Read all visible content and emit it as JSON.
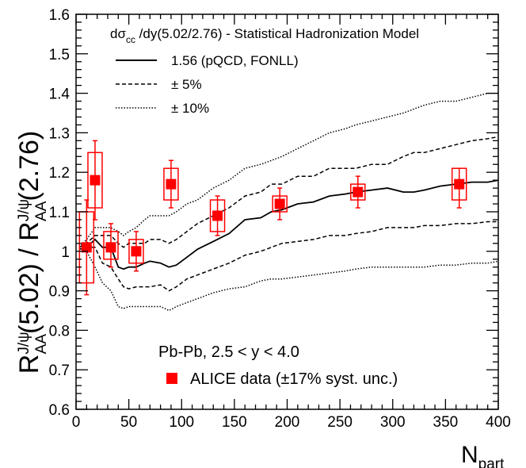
{
  "chart_data": {
    "type": "scatter",
    "xlabel": "N",
    "xlabel_sub": "part",
    "ylabel": {
      "r1": "R",
      "r1_sup": "J/ψ",
      "r1_sub": "AA",
      "mid": "(5.02) / R",
      "r2_sup": "J/ψ",
      "r2_sub": "AA",
      "tail": "(2.76)"
    },
    "xlim": [
      0,
      400
    ],
    "ylim": [
      0.6,
      1.6
    ],
    "x_ticks": [
      "0",
      "50",
      "100",
      "150",
      "200",
      "250",
      "300",
      "350",
      "400"
    ],
    "y_ticks": [
      "0.6",
      "0.7",
      "0.8",
      "0.9",
      "1",
      "1.1",
      "1.2",
      "1.3",
      "1.4",
      "1.5",
      "1.6"
    ],
    "legend_title": {
      "pre": "dσ",
      "sub": "cc",
      "post": " /dy(5.02/2.76) - Statistical Hadronization Model"
    },
    "legend": [
      {
        "style": "solid",
        "label": "1.56 (pQCD, FONLL)"
      },
      {
        "style": "dashed",
        "label": "± 5%"
      },
      {
        "style": "dotted",
        "label": "± 10%"
      }
    ],
    "annotation": "Pb-Pb, 2.5 < y < 4.0",
    "data_legend": "ALICE data (±17% syst. unc.)",
    "marker_color": "#ff0000",
    "series": [
      {
        "name": "ALICE data",
        "points": [
          {
            "x": 10,
            "y": 1.01,
            "stat": [
              0.89,
              1.13
            ],
            "syst": [
              0.92,
              1.1
            ]
          },
          {
            "x": 18,
            "y": 1.18,
            "stat": [
              1.08,
              1.28
            ],
            "syst": [
              1.11,
              1.25
            ]
          },
          {
            "x": 33,
            "y": 1.01,
            "stat": [
              0.96,
              1.07
            ],
            "syst": [
              0.98,
              1.05
            ]
          },
          {
            "x": 57,
            "y": 1.0,
            "stat": [
              0.95,
              1.05
            ],
            "syst": [
              0.97,
              1.03
            ]
          },
          {
            "x": 90,
            "y": 1.17,
            "stat": [
              1.11,
              1.23
            ],
            "syst": [
              1.13,
              1.21
            ]
          },
          {
            "x": 134,
            "y": 1.09,
            "stat": [
              1.04,
              1.14
            ],
            "syst": [
              1.05,
              1.13
            ]
          },
          {
            "x": 193,
            "y": 1.12,
            "stat": [
              1.08,
              1.16
            ],
            "syst": [
              1.1,
              1.14
            ]
          },
          {
            "x": 267,
            "y": 1.15,
            "stat": [
              1.11,
              1.19
            ],
            "syst": [
              1.13,
              1.17
            ]
          },
          {
            "x": 363,
            "y": 1.17,
            "stat": [
              1.11,
              1.21
            ],
            "syst": [
              1.13,
              1.21
            ]
          }
        ]
      },
      {
        "name": "1.56 (pQCD, FONLL)",
        "line": "solid",
        "x": [
          3,
          10,
          18,
          25,
          33,
          40,
          45,
          50,
          57,
          65,
          70,
          80,
          88,
          95,
          105,
          115,
          130,
          145,
          160,
          175,
          185,
          195,
          210,
          225,
          240,
          255,
          265,
          280,
          295,
          310,
          320,
          330,
          345,
          360,
          375,
          390,
          400
        ],
        "y": [
          1.005,
          1.01,
          1.03,
          1.01,
          1.01,
          0.96,
          0.955,
          0.96,
          0.96,
          0.97,
          0.975,
          0.97,
          0.96,
          0.965,
          0.985,
          1.005,
          1.025,
          1.045,
          1.08,
          1.085,
          1.1,
          1.105,
          1.12,
          1.125,
          1.14,
          1.145,
          1.15,
          1.155,
          1.16,
          1.15,
          1.15,
          1.155,
          1.165,
          1.17,
          1.175,
          1.175,
          1.18
        ]
      },
      {
        "name": "± 5% upper",
        "line": "dashed",
        "x": [
          3,
          10,
          18,
          25,
          33,
          40,
          45,
          50,
          57,
          65,
          70,
          80,
          88,
          95,
          105,
          115,
          130,
          145,
          160,
          175,
          185,
          195,
          210,
          225,
          240,
          255,
          265,
          280,
          295,
          310,
          320,
          330,
          345,
          360,
          375,
          390,
          400
        ],
        "y": [
          1.01,
          1.02,
          1.04,
          1.04,
          1.04,
          1.02,
          1.01,
          1.02,
          1.02,
          1.02,
          1.03,
          1.03,
          1.02,
          1.03,
          1.05,
          1.07,
          1.09,
          1.11,
          1.14,
          1.15,
          1.17,
          1.17,
          1.19,
          1.19,
          1.21,
          1.21,
          1.21,
          1.22,
          1.22,
          1.24,
          1.25,
          1.25,
          1.26,
          1.27,
          1.28,
          1.285,
          1.29
        ]
      },
      {
        "name": "± 5% lower",
        "line": "dashed",
        "x": [
          3,
          10,
          18,
          25,
          33,
          40,
          45,
          50,
          57,
          65,
          70,
          80,
          88,
          95,
          105,
          115,
          130,
          145,
          160,
          175,
          185,
          195,
          210,
          225,
          240,
          255,
          265,
          280,
          295,
          310,
          320,
          330,
          345,
          360,
          375,
          390,
          400
        ],
        "y": [
          1.005,
          1.01,
          1.01,
          0.97,
          0.96,
          0.93,
          0.91,
          0.905,
          0.91,
          0.91,
          0.91,
          0.915,
          0.9,
          0.91,
          0.93,
          0.94,
          0.955,
          0.97,
          0.99,
          1.0,
          1.01,
          1.02,
          1.025,
          1.03,
          1.04,
          1.04,
          1.045,
          1.05,
          1.06,
          1.06,
          1.06,
          1.065,
          1.065,
          1.07,
          1.07,
          1.075,
          1.075
        ]
      },
      {
        "name": "± 10% upper",
        "line": "dotted",
        "x": [
          3,
          10,
          18,
          25,
          33,
          40,
          45,
          50,
          57,
          65,
          70,
          80,
          88,
          95,
          105,
          115,
          130,
          145,
          160,
          175,
          185,
          195,
          210,
          225,
          240,
          255,
          265,
          280,
          295,
          310,
          320,
          330,
          345,
          360,
          375,
          390,
          400
        ],
        "y": [
          1.01,
          1.03,
          1.06,
          1.06,
          1.06,
          1.05,
          1.04,
          1.05,
          1.06,
          1.08,
          1.09,
          1.09,
          1.09,
          1.1,
          1.12,
          1.13,
          1.16,
          1.18,
          1.21,
          1.22,
          1.23,
          1.24,
          1.26,
          1.28,
          1.3,
          1.31,
          1.32,
          1.33,
          1.34,
          1.35,
          1.36,
          1.37,
          1.38,
          1.38,
          1.39,
          1.4,
          1.4
        ]
      },
      {
        "name": "± 10% lower",
        "line": "dotted",
        "x": [
          3,
          10,
          18,
          25,
          33,
          40,
          45,
          50,
          57,
          65,
          70,
          80,
          88,
          95,
          105,
          115,
          130,
          145,
          160,
          175,
          185,
          195,
          210,
          225,
          240,
          255,
          265,
          280,
          295,
          310,
          320,
          330,
          345,
          360,
          375,
          390,
          400
        ],
        "y": [
          1.0,
          1.0,
          0.96,
          0.92,
          0.9,
          0.86,
          0.855,
          0.86,
          0.86,
          0.86,
          0.86,
          0.86,
          0.85,
          0.86,
          0.87,
          0.88,
          0.895,
          0.905,
          0.91,
          0.925,
          0.93,
          0.93,
          0.935,
          0.94,
          0.945,
          0.95,
          0.955,
          0.96,
          0.96,
          0.96,
          0.96,
          0.96,
          0.965,
          0.965,
          0.97,
          0.97,
          0.975
        ]
      }
    ]
  }
}
